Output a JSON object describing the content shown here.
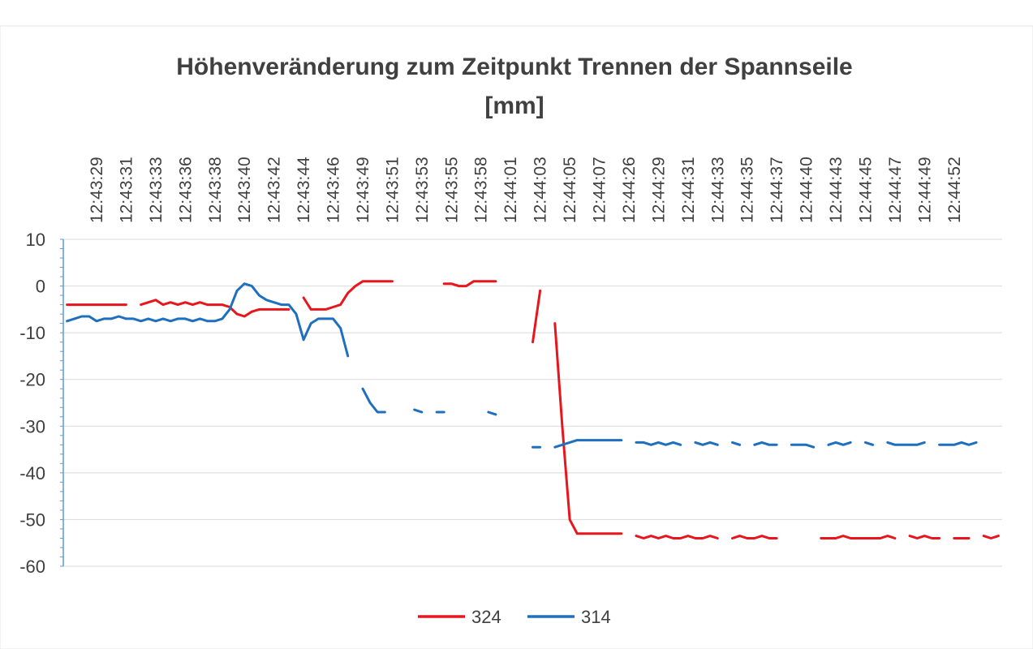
{
  "chart_data": {
    "type": "line",
    "title_lines": [
      "Höhenveränderung zum Zeitpunkt Trennen der Spannseile",
      "[mm]"
    ],
    "categories": [
      null,
      null,
      null,
      null,
      "12:43:29",
      null,
      null,
      null,
      "12:43:31",
      null,
      null,
      null,
      "12:43:33",
      null,
      null,
      null,
      "12:43:36",
      null,
      null,
      null,
      "12:43:38",
      null,
      null,
      null,
      "12:43:40",
      null,
      null,
      null,
      "12:43:42",
      null,
      null,
      null,
      "12:43:44",
      null,
      null,
      null,
      "12:43:46",
      null,
      null,
      null,
      "12:43:49",
      null,
      null,
      null,
      "12:43:51",
      null,
      null,
      null,
      "12:43:53",
      null,
      null,
      null,
      "12:43:55",
      null,
      null,
      null,
      "12:43:58",
      null,
      null,
      null,
      "12:44:01",
      null,
      null,
      null,
      "12:44:03",
      null,
      null,
      null,
      "12:44:05",
      null,
      null,
      null,
      "12:44:07",
      null,
      null,
      null,
      "12:44:26",
      null,
      null,
      null,
      "12:44:29",
      null,
      null,
      null,
      "12:44:31",
      null,
      null,
      null,
      "12:44:33",
      null,
      null,
      null,
      "12:44:35",
      null,
      null,
      null,
      "12:44:37",
      null,
      null,
      null,
      "12:44:40",
      null,
      null,
      null,
      "12:44:43",
      null,
      null,
      null,
      "12:44:45",
      null,
      null,
      null,
      "12:44:47",
      null,
      null,
      null,
      "12:44:49",
      null,
      null,
      null,
      "12:44:52",
      null,
      null,
      null,
      null,
      null,
      null
    ],
    "series": [
      {
        "name": "324",
        "color": "#e8161c",
        "values": [
          -4,
          -4,
          -4,
          -4,
          -4,
          -4,
          -4,
          -4,
          -4,
          null,
          -4,
          -3.5,
          -3,
          -4,
          -3.5,
          -4,
          -3.5,
          -4,
          -3.5,
          -4,
          -4,
          -4,
          -4.5,
          -6,
          -6.5,
          -5.5,
          -5,
          -5,
          -5,
          -5,
          -5,
          null,
          -2.5,
          -5,
          -5,
          -5,
          -4.5,
          -4,
          -1.5,
          0,
          1,
          1,
          1,
          1,
          1,
          null,
          1,
          null,
          null,
          null,
          null,
          0.5,
          0.5,
          0,
          0,
          1,
          1,
          1,
          1,
          null,
          null,
          null,
          null,
          -12,
          -1,
          null,
          -8,
          -30,
          -50,
          -53,
          -53,
          -53,
          -53,
          -53,
          -53,
          -53,
          null,
          -53.5,
          -54,
          -53.5,
          -54,
          -53.5,
          -54,
          -54,
          -53.5,
          -54,
          -54,
          -53.5,
          -54,
          null,
          -54,
          -53.5,
          -54,
          -54,
          -53.5,
          -54,
          -54,
          null,
          null,
          null,
          null,
          null,
          -54,
          -54,
          -54,
          -53.5,
          -54,
          -54,
          -54,
          -54,
          -54,
          -53.5,
          -54,
          null,
          -53.5,
          -54,
          -53.5,
          -54,
          -54,
          null,
          -54,
          -54,
          -54,
          null,
          -53.5,
          -54,
          -53.5
        ]
      },
      {
        "name": "314",
        "color": "#1f6fbf",
        "values": [
          -7.5,
          -7,
          -6.5,
          -6.5,
          -7.5,
          -7,
          -7,
          -6.5,
          -7,
          -7,
          -7.5,
          -7,
          -7.5,
          -7,
          -7.5,
          -7,
          -7,
          -7.5,
          -7,
          -7.5,
          -7.5,
          -7,
          -5,
          -1,
          0.5,
          0,
          -2,
          -3,
          -3.5,
          -4,
          -4,
          -6,
          -11.5,
          -8,
          -7,
          -7,
          -7,
          -9,
          -15,
          null,
          -22,
          -25,
          -27,
          -27,
          null,
          -26.5,
          null,
          -26.5,
          -27,
          null,
          -27,
          -27,
          null,
          null,
          null,
          null,
          null,
          -27,
          -27.5,
          null,
          null,
          null,
          null,
          -34.5,
          -34.5,
          null,
          -34.5,
          -34,
          -33.5,
          -33,
          -33,
          -33,
          -33,
          -33,
          -33,
          -33,
          null,
          -33.5,
          -33.5,
          -34,
          -33.5,
          -34,
          -33.5,
          -34,
          null,
          -33.5,
          -34,
          -33.5,
          -34,
          null,
          -33.5,
          -34,
          null,
          -34,
          -33.5,
          -34,
          -34,
          null,
          -34,
          -34,
          -34,
          -34.5,
          null,
          -34,
          -33.5,
          -34,
          -33.5,
          null,
          -33.5,
          -34,
          null,
          -33.5,
          -34,
          -34,
          -34,
          -34,
          -33.5,
          null,
          -34,
          -34,
          -34,
          -33.5,
          -34,
          -33.5,
          null,
          null,
          null
        ]
      }
    ],
    "ylim": [
      -60,
      10
    ],
    "yticks": [
      10,
      0,
      -10,
      -20,
      -30,
      -40,
      -50,
      -60
    ],
    "grid": true,
    "legend": "bottom"
  }
}
